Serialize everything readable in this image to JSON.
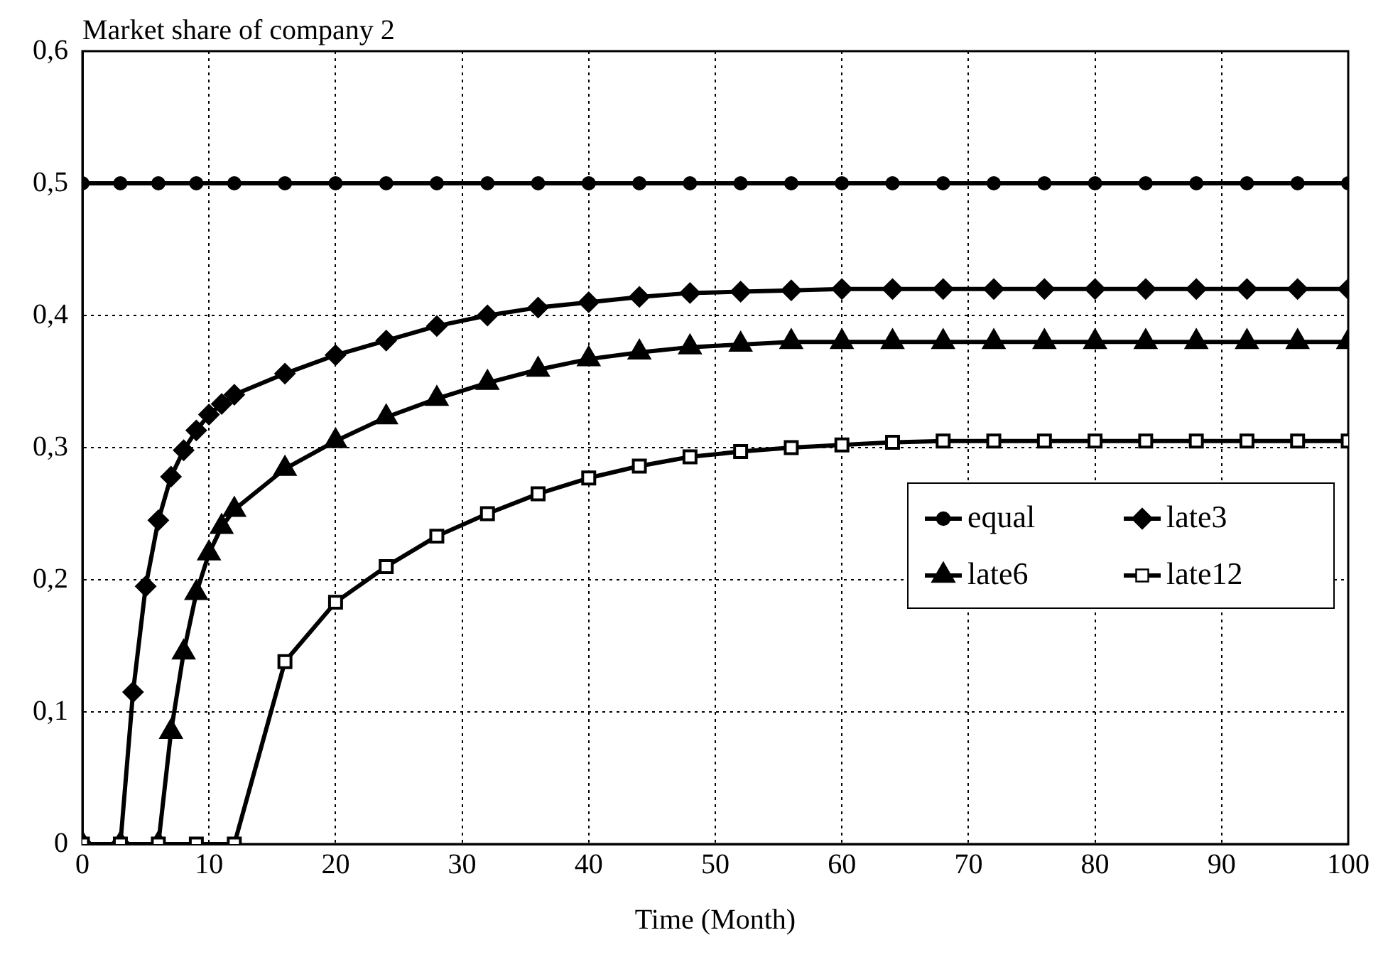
{
  "chart_data": {
    "type": "line",
    "ylabel": "Market share of company 2",
    "xlabel": "Time (Month)",
    "xlim": [
      0,
      100
    ],
    "xticks": [
      0,
      10,
      20,
      30,
      40,
      50,
      60,
      70,
      80,
      90,
      100
    ],
    "ylim": [
      0,
      0.6
    ],
    "yticks": [
      0,
      {
        "value": 0.1,
        "label": "0,1"
      },
      {
        "value": 0.2,
        "label": "0,2"
      },
      {
        "value": 0.3,
        "label": "0,3"
      },
      {
        "value": 0.4,
        "label": "0,4"
      },
      {
        "value": 0.5,
        "label": "0,5"
      },
      {
        "value": 0.6,
        "label": "0,6"
      }
    ],
    "grid": true,
    "legend": "right",
    "line_style": "solid",
    "series": [
      {
        "name": "equal",
        "color": "#000000",
        "marker": "circle",
        "x": [
          0,
          3,
          6,
          9,
          12,
          16,
          20,
          24,
          28,
          32,
          36,
          40,
          44,
          48,
          52,
          56,
          60,
          64,
          68,
          72,
          76,
          80,
          84,
          88,
          92,
          96,
          100
        ],
        "values": [
          0.5,
          0.5,
          0.5,
          0.5,
          0.5,
          0.5,
          0.5,
          0.5,
          0.5,
          0.5,
          0.5,
          0.5,
          0.5,
          0.5,
          0.5,
          0.5,
          0.5,
          0.5,
          0.5,
          0.5,
          0.5,
          0.5,
          0.5,
          0.5,
          0.5,
          0.5,
          0.5
        ]
      },
      {
        "name": "late3",
        "color": "#000000",
        "marker": "diamond",
        "x": [
          0,
          3,
          4,
          5,
          6,
          7,
          8,
          9,
          10,
          11,
          12,
          16,
          20,
          24,
          28,
          32,
          36,
          40,
          44,
          48,
          52,
          56,
          60,
          64,
          68,
          72,
          76,
          80,
          84,
          88,
          92,
          96,
          100
        ],
        "values": [
          0,
          0,
          0.115,
          0.195,
          0.245,
          0.278,
          0.298,
          0.313,
          0.325,
          0.333,
          0.34,
          0.356,
          0.37,
          0.381,
          0.392,
          0.4,
          0.406,
          0.41,
          0.414,
          0.417,
          0.418,
          0.419,
          0.42,
          0.42,
          0.42,
          0.42,
          0.42,
          0.42,
          0.42,
          0.42,
          0.42,
          0.42,
          0.42
        ]
      },
      {
        "name": "late6",
        "color": "#000000",
        "marker": "triangle",
        "x": [
          0,
          3,
          6,
          7,
          8,
          9,
          10,
          11,
          12,
          16,
          20,
          24,
          28,
          32,
          36,
          40,
          44,
          48,
          52,
          56,
          60,
          64,
          68,
          72,
          76,
          80,
          84,
          88,
          92,
          96,
          100
        ],
        "values": [
          0,
          0,
          0,
          0.085,
          0.145,
          0.19,
          0.22,
          0.24,
          0.253,
          0.284,
          0.305,
          0.323,
          0.337,
          0.349,
          0.359,
          0.367,
          0.372,
          0.376,
          0.378,
          0.38,
          0.38,
          0.38,
          0.38,
          0.38,
          0.38,
          0.38,
          0.38,
          0.38,
          0.38,
          0.38,
          0.38
        ]
      },
      {
        "name": "late12",
        "color": "#000000",
        "marker": "square",
        "x": [
          0,
          3,
          6,
          9,
          12,
          16,
          20,
          24,
          28,
          32,
          36,
          40,
          44,
          48,
          52,
          56,
          60,
          64,
          68,
          72,
          76,
          80,
          84,
          88,
          92,
          96,
          100
        ],
        "values": [
          0,
          0,
          0,
          0,
          0,
          0.138,
          0.183,
          0.21,
          0.233,
          0.25,
          0.265,
          0.277,
          0.286,
          0.293,
          0.297,
          0.3,
          0.302,
          0.304,
          0.305,
          0.305,
          0.305,
          0.305,
          0.305,
          0.305,
          0.305,
          0.305,
          0.305
        ]
      }
    ]
  }
}
